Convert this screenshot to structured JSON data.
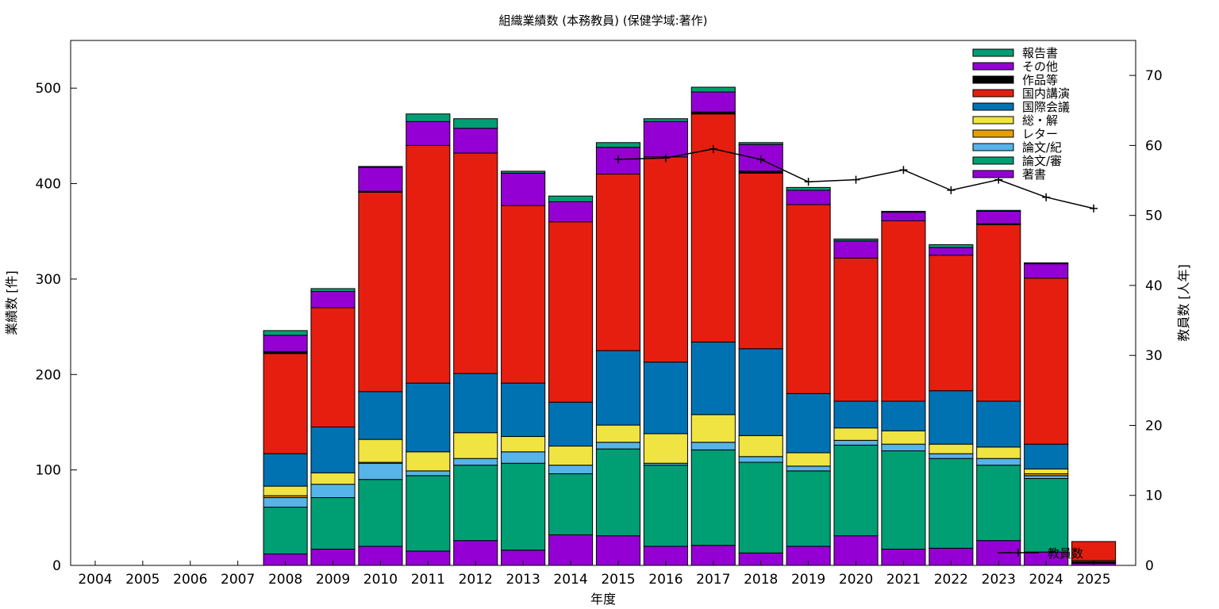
{
  "chart_data": {
    "type": "bar",
    "title": "組織業績数 (本務教員) (保健学域:著作)",
    "xlabel": "年度",
    "ylabel": "業績数 [件]",
    "y2label": "教員数 [人年]",
    "ylim": [
      0,
      550
    ],
    "y2lim": [
      0,
      75
    ],
    "yticks": [
      0,
      100,
      200,
      300,
      400,
      500
    ],
    "y2ticks": [
      0,
      10,
      20,
      30,
      40,
      50,
      60,
      70
    ],
    "stacked": true,
    "legend_position": "top-right",
    "categories": [
      "2004",
      "2005",
      "2006",
      "2007",
      "2008",
      "2009",
      "2010",
      "2011",
      "2012",
      "2013",
      "2014",
      "2015",
      "2016",
      "2017",
      "2018",
      "2019",
      "2020",
      "2021",
      "2022",
      "2023",
      "2024",
      "2025"
    ],
    "series": [
      {
        "name": "著書",
        "color": "#9400d3",
        "values": [
          0,
          0,
          0,
          0,
          12,
          17,
          20,
          15,
          26,
          16,
          32,
          31,
          20,
          21,
          13,
          20,
          31,
          17,
          18,
          26,
          14,
          2
        ]
      },
      {
        "name": "論文/審",
        "color": "#009e73",
        "values": [
          0,
          0,
          0,
          0,
          49,
          54,
          70,
          79,
          79,
          91,
          64,
          91,
          85,
          100,
          95,
          79,
          95,
          103,
          94,
          79,
          77,
          1
        ]
      },
      {
        "name": "論文/紀",
        "color": "#56b4e9",
        "values": [
          0,
          0,
          0,
          0,
          10,
          14,
          17,
          5,
          7,
          12,
          9,
          7,
          2,
          8,
          6,
          5,
          5,
          7,
          5,
          7,
          3,
          0
        ]
      },
      {
        "name": "レター",
        "color": "#e69f00",
        "values": [
          0,
          0,
          0,
          0,
          2,
          0,
          1,
          0,
          0,
          0,
          0,
          0,
          0,
          0,
          0,
          0,
          0,
          0,
          0,
          0,
          2,
          1
        ]
      },
      {
        "name": "総・解",
        "color": "#f0e442",
        "values": [
          0,
          0,
          0,
          0,
          10,
          12,
          24,
          20,
          27,
          16,
          20,
          18,
          31,
          29,
          22,
          14,
          13,
          14,
          10,
          12,
          5,
          1
        ]
      },
      {
        "name": "国際会議",
        "color": "#0072b2",
        "values": [
          0,
          0,
          0,
          0,
          34,
          48,
          50,
          72,
          62,
          56,
          46,
          78,
          75,
          76,
          91,
          62,
          28,
          31,
          56,
          48,
          26,
          0
        ]
      },
      {
        "name": "国内講演",
        "color": "#e51e10",
        "values": [
          0,
          0,
          0,
          0,
          105,
          125,
          209,
          249,
          231,
          186,
          189,
          185,
          215,
          239,
          184,
          198,
          150,
          189,
          142,
          185,
          174,
          20
        ]
      },
      {
        "name": "作品等",
        "color": "#000000",
        "values": [
          0,
          0,
          0,
          0,
          2,
          0,
          1,
          0,
          0,
          0,
          0,
          0,
          0,
          2,
          2,
          0,
          0,
          0,
          0,
          1,
          0,
          0
        ]
      },
      {
        "name": "その他",
        "color": "#9400d3",
        "values": [
          0,
          0,
          0,
          0,
          17,
          17,
          25,
          25,
          26,
          34,
          21,
          28,
          37,
          21,
          28,
          15,
          18,
          9,
          8,
          13,
          15,
          0
        ]
      },
      {
        "name": "報告書",
        "color": "#009e73",
        "values": [
          0,
          0,
          0,
          0,
          5,
          3,
          1,
          8,
          10,
          2,
          6,
          5,
          3,
          5,
          2,
          3,
          2,
          1,
          3,
          1,
          1,
          0
        ]
      }
    ],
    "line_series": {
      "name": "教員数",
      "axis": "y2",
      "color": "#000000",
      "x": [
        "2015",
        "2016",
        "2017",
        "2018",
        "2019",
        "2020",
        "2021",
        "2022",
        "2023",
        "2024",
        "2025"
      ],
      "values": [
        58.0,
        58.2,
        59.5,
        58.0,
        54.8,
        55.1,
        56.5,
        53.6,
        55.1,
        52.6,
        51.0
      ]
    }
  }
}
